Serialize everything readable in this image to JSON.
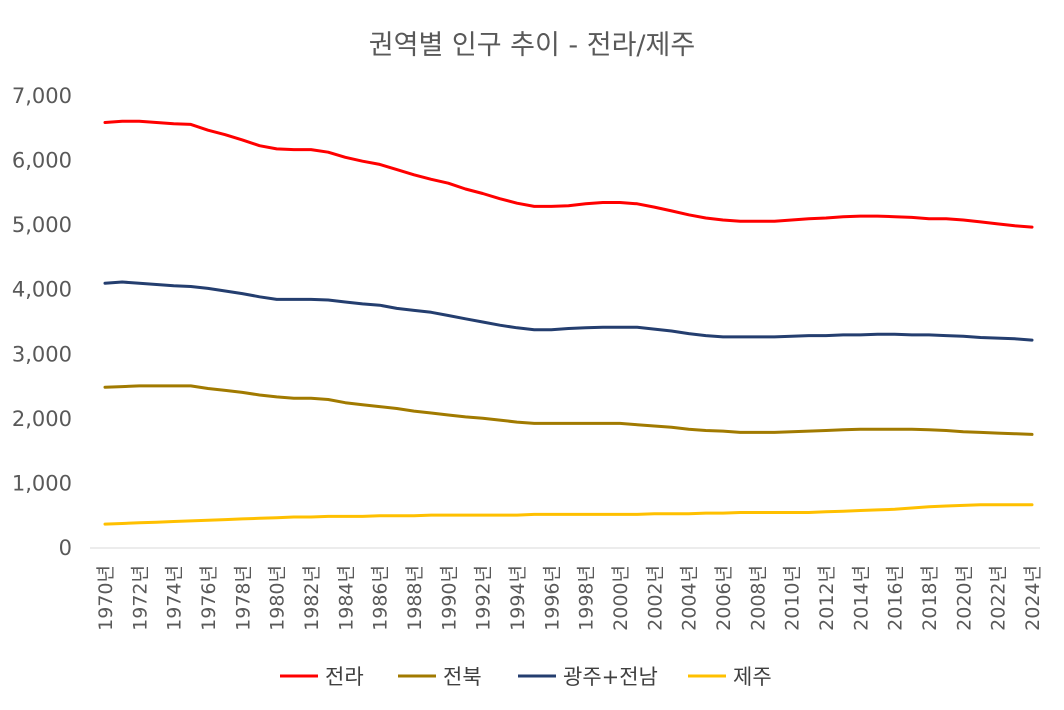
{
  "chart_data": {
    "type": "line",
    "title": "권역별 인구 추이 - 전라/제주",
    "xlabel": "",
    "ylabel": "",
    "ylim": [
      0,
      7000
    ],
    "yticks": [
      "0",
      "1,000",
      "2,000",
      "3,000",
      "4,000",
      "5,000",
      "6,000",
      "7,000"
    ],
    "grid": false,
    "legend_position": "bottom",
    "x": [
      "1970년",
      "1971년",
      "1972년",
      "1973년",
      "1974년",
      "1975년",
      "1976년",
      "1977년",
      "1978년",
      "1979년",
      "1980년",
      "1981년",
      "1982년",
      "1983년",
      "1984년",
      "1985년",
      "1986년",
      "1987년",
      "1988년",
      "1989년",
      "1990년",
      "1991년",
      "1992년",
      "1993년",
      "1994년",
      "1995년",
      "1996년",
      "1997년",
      "1998년",
      "1999년",
      "2000년",
      "2001년",
      "2002년",
      "2003년",
      "2004년",
      "2005년",
      "2006년",
      "2007년",
      "2008년",
      "2009년",
      "2010년",
      "2011년",
      "2012년",
      "2013년",
      "2014년",
      "2015년",
      "2016년",
      "2017년",
      "2018년",
      "2019년",
      "2020년",
      "2021년",
      "2022년",
      "2023년",
      "2024년"
    ],
    "x_labels_shown": [
      "1970년",
      "1972년",
      "1974년",
      "1976년",
      "1978년",
      "1980년",
      "1982년",
      "1984년",
      "1986년",
      "1988년",
      "1990년",
      "1992년",
      "1994년",
      "1996년",
      "1998년",
      "2000년",
      "2002년",
      "2004년",
      "2006년",
      "2008년",
      "2010년",
      "2012년",
      "2014년",
      "2016년",
      "2018년",
      "2020년",
      "2022년",
      "2024년"
    ],
    "series": [
      {
        "name": "전라",
        "color": "#ff0000",
        "values": [
          6590,
          6610,
          6610,
          6590,
          6570,
          6560,
          6470,
          6400,
          6320,
          6230,
          6180,
          6170,
          6170,
          6130,
          6050,
          5990,
          5940,
          5860,
          5780,
          5710,
          5650,
          5560,
          5490,
          5410,
          5340,
          5290,
          5290,
          5300,
          5330,
          5350,
          5350,
          5330,
          5280,
          5220,
          5160,
          5110,
          5080,
          5060,
          5060,
          5060,
          5080,
          5100,
          5110,
          5130,
          5140,
          5140,
          5130,
          5120,
          5100,
          5100,
          5080,
          5050,
          5020,
          4990,
          4970
        ]
      },
      {
        "name": "전북",
        "color": "#a17a00",
        "values": [
          2490,
          2500,
          2510,
          2510,
          2510,
          2510,
          2470,
          2440,
          2410,
          2370,
          2340,
          2320,
          2320,
          2300,
          2250,
          2220,
          2190,
          2160,
          2120,
          2090,
          2060,
          2030,
          2010,
          1980,
          1950,
          1930,
          1930,
          1930,
          1930,
          1930,
          1930,
          1910,
          1890,
          1870,
          1840,
          1820,
          1810,
          1790,
          1790,
          1790,
          1800,
          1810,
          1820,
          1830,
          1840,
          1840,
          1840,
          1840,
          1830,
          1820,
          1800,
          1790,
          1780,
          1770,
          1760
        ]
      },
      {
        "name": "광주+전남",
        "color": "#243e6f",
        "values": [
          4100,
          4120,
          4100,
          4080,
          4060,
          4050,
          4020,
          3980,
          3940,
          3890,
          3850,
          3850,
          3850,
          3840,
          3810,
          3780,
          3760,
          3710,
          3680,
          3650,
          3600,
          3550,
          3500,
          3450,
          3410,
          3380,
          3380,
          3400,
          3410,
          3420,
          3420,
          3420,
          3390,
          3360,
          3320,
          3290,
          3270,
          3270,
          3270,
          3270,
          3280,
          3290,
          3290,
          3300,
          3300,
          3310,
          3310,
          3300,
          3300,
          3290,
          3280,
          3260,
          3250,
          3240,
          3220
        ]
      },
      {
        "name": "제주",
        "color": "#ffc000",
        "values": [
          370,
          380,
          390,
          400,
          410,
          420,
          430,
          440,
          450,
          460,
          470,
          480,
          480,
          490,
          490,
          490,
          500,
          500,
          500,
          510,
          510,
          510,
          510,
          510,
          510,
          520,
          520,
          520,
          520,
          520,
          520,
          520,
          530,
          530,
          530,
          540,
          540,
          550,
          550,
          550,
          550,
          550,
          560,
          570,
          580,
          590,
          600,
          620,
          640,
          650,
          660,
          670,
          670,
          670,
          670
        ]
      }
    ]
  }
}
